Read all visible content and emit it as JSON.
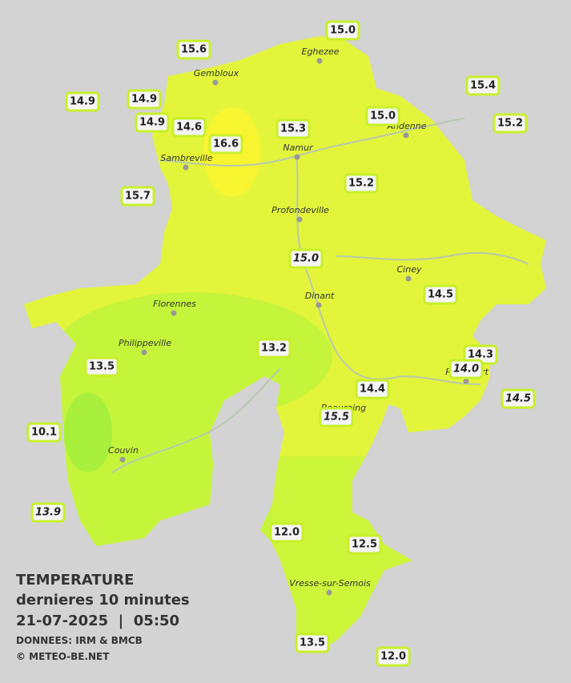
{
  "legend": {
    "title": "TEMPERATURE",
    "subtitle": "dernieres 10 minutes",
    "datetime": "21-07-2025  |  05:50",
    "source": "DONNEES: IRM & BMCB",
    "credit": "© METEO-BE.NET"
  },
  "cities": [
    "Eghezee",
    "Gembloux",
    "Andenne",
    "Namur",
    "Sambreville",
    "Profondeville",
    "Ciney",
    "Dinant",
    "Florennes",
    "Philippeville",
    "Rochefort",
    "Beauraing",
    "Couvin",
    "Vresse-sur-Semois"
  ],
  "stations": [
    {
      "label": "15.0",
      "italic": false
    },
    {
      "label": "15.6",
      "italic": false
    },
    {
      "label": "15.4",
      "italic": false
    },
    {
      "label": "14.9",
      "italic": false
    },
    {
      "label": "14.9",
      "italic": false
    },
    {
      "label": "15.0",
      "italic": false
    },
    {
      "label": "14.9",
      "italic": false
    },
    {
      "label": "14.6",
      "italic": false
    },
    {
      "label": "15.3",
      "italic": false
    },
    {
      "label": "15.2",
      "italic": false
    },
    {
      "label": "16.6",
      "italic": false
    },
    {
      "label": "15.2",
      "italic": false
    },
    {
      "label": "15.7",
      "italic": false
    },
    {
      "label": "15.0",
      "italic": true
    },
    {
      "label": "14.5",
      "italic": false
    },
    {
      "label": "13.2",
      "italic": false
    },
    {
      "label": "14.3",
      "italic": false
    },
    {
      "label": "14.0",
      "italic": true
    },
    {
      "label": "13.5",
      "italic": false
    },
    {
      "label": "14.4",
      "italic": false
    },
    {
      "label": "14.5",
      "italic": true
    },
    {
      "label": "15.5",
      "italic": true
    },
    {
      "label": "10.1",
      "italic": false
    },
    {
      "label": "13.9",
      "italic": true
    },
    {
      "label": "12.0",
      "italic": false
    },
    {
      "label": "12.5",
      "italic": false
    },
    {
      "label": "13.5",
      "italic": false
    },
    {
      "label": "12.0",
      "italic": false
    }
  ]
}
